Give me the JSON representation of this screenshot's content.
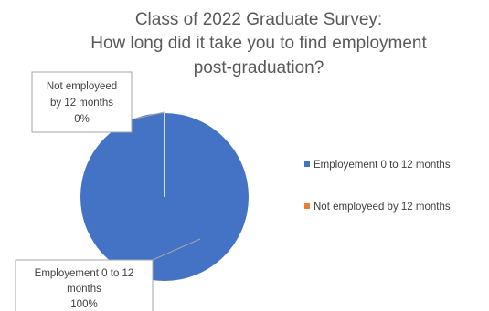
{
  "chart_data": {
    "type": "pie",
    "title_lines": [
      "Class of 2022 Graduate Survey:",
      "How long did it take you to find employment",
      "post-graduation?"
    ],
    "slices": [
      {
        "name": "Employement 0 to 12 months",
        "value": 100,
        "label_lines": [
          "Employement 0 to 12",
          "months",
          "100%"
        ],
        "color": "#4472c4"
      },
      {
        "name": "Not employeed by 12 months",
        "value": 0,
        "label_lines": [
          "Not employeed",
          "by 12 months",
          "0%"
        ],
        "color": "#ed7d31"
      }
    ],
    "legend": {
      "position": "right",
      "entries": [
        "Employement 0 to 12 months",
        "Not employeed by 12 months"
      ]
    }
  }
}
